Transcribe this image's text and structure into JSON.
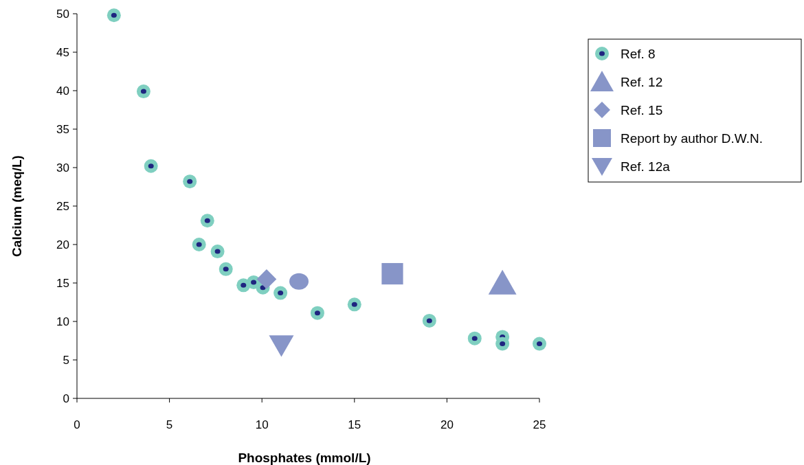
{
  "chart_data": {
    "type": "scatter",
    "xlabel": "Phosphates (mmol/L)",
    "ylabel": "Calcium (meq/L)",
    "xlim": [
      0,
      25
    ],
    "xticks": [
      0,
      5,
      10,
      15,
      20,
      25
    ],
    "ylim": [
      0,
      50
    ],
    "yticks": [
      0,
      5,
      10,
      15,
      20,
      25,
      30,
      35,
      40,
      45,
      50
    ],
    "grid": false,
    "legend": "top right",
    "series": [
      {
        "name": "Ref. 8",
        "color": "#7fcfc0",
        "marker": "circle",
        "x": [
          2,
          3.6,
          4,
          6.1,
          7.05,
          6.6,
          7.6,
          8.05,
          9,
          9.55,
          10.05,
          11,
          13,
          15,
          19.05,
          21.5,
          23,
          23,
          25
        ],
        "values": [
          49.8,
          39.9,
          30.2,
          28.2,
          23.1,
          20,
          19.1,
          16.8,
          14.7,
          15.1,
          14.4,
          13.7,
          11.1,
          12.2,
          10.1,
          7.8,
          8,
          7.1,
          7.1
        ]
      },
      {
        "name": "Ref. 12",
        "color": "#8795c8",
        "marker": "triangle",
        "x": [
          23
        ],
        "values": [
          15
        ]
      },
      {
        "name": "Ref. 15",
        "color": "#8795c8",
        "marker": "diamond",
        "x": [
          10.25
        ],
        "values": [
          15.5
        ]
      },
      {
        "name": "Report by author D.W.N.",
        "color": "#8795c8",
        "marker": "square",
        "x": [
          17.05
        ],
        "values": [
          16.2
        ]
      },
      {
        "name": "Ref. 12a",
        "color": "#8795c8",
        "marker": "triangle-down",
        "x": [
          11.05
        ],
        "values": [
          6.9
        ]
      },
      {
        "color": "#8795c8",
        "marker": "circle-large",
        "x": [
          12
        ],
        "values": [
          15.2
        ]
      }
    ]
  }
}
